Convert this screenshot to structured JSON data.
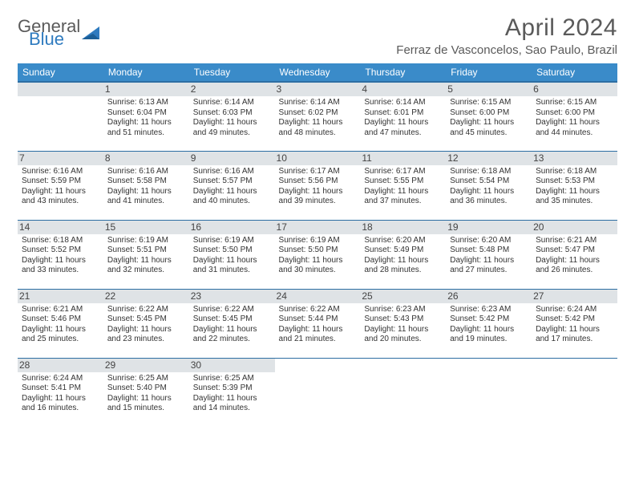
{
  "logo": {
    "word1": "General",
    "word2": "Blue"
  },
  "title": "April 2024",
  "subtitle": "Ferraz de Vasconcelos, Sao Paulo, Brazil",
  "colors": {
    "header_bg": "#3a8bc9",
    "header_text": "#ffffff",
    "rule": "#2d6ea3",
    "daybar": "#dfe3e6",
    "text": "#333333",
    "logo_gray": "#5a5a5a",
    "logo_blue": "#2f7bbf"
  },
  "daynames": [
    "Sunday",
    "Monday",
    "Tuesday",
    "Wednesday",
    "Thursday",
    "Friday",
    "Saturday"
  ],
  "weeks": [
    [
      null,
      {
        "n": "1",
        "sr": "6:13 AM",
        "ss": "6:04 PM",
        "dl": "11 hours and 51 minutes."
      },
      {
        "n": "2",
        "sr": "6:14 AM",
        "ss": "6:03 PM",
        "dl": "11 hours and 49 minutes."
      },
      {
        "n": "3",
        "sr": "6:14 AM",
        "ss": "6:02 PM",
        "dl": "11 hours and 48 minutes."
      },
      {
        "n": "4",
        "sr": "6:14 AM",
        "ss": "6:01 PM",
        "dl": "11 hours and 47 minutes."
      },
      {
        "n": "5",
        "sr": "6:15 AM",
        "ss": "6:00 PM",
        "dl": "11 hours and 45 minutes."
      },
      {
        "n": "6",
        "sr": "6:15 AM",
        "ss": "6:00 PM",
        "dl": "11 hours and 44 minutes."
      }
    ],
    [
      {
        "n": "7",
        "sr": "6:16 AM",
        "ss": "5:59 PM",
        "dl": "11 hours and 43 minutes."
      },
      {
        "n": "8",
        "sr": "6:16 AM",
        "ss": "5:58 PM",
        "dl": "11 hours and 41 minutes."
      },
      {
        "n": "9",
        "sr": "6:16 AM",
        "ss": "5:57 PM",
        "dl": "11 hours and 40 minutes."
      },
      {
        "n": "10",
        "sr": "6:17 AM",
        "ss": "5:56 PM",
        "dl": "11 hours and 39 minutes."
      },
      {
        "n": "11",
        "sr": "6:17 AM",
        "ss": "5:55 PM",
        "dl": "11 hours and 37 minutes."
      },
      {
        "n": "12",
        "sr": "6:18 AM",
        "ss": "5:54 PM",
        "dl": "11 hours and 36 minutes."
      },
      {
        "n": "13",
        "sr": "6:18 AM",
        "ss": "5:53 PM",
        "dl": "11 hours and 35 minutes."
      }
    ],
    [
      {
        "n": "14",
        "sr": "6:18 AM",
        "ss": "5:52 PM",
        "dl": "11 hours and 33 minutes."
      },
      {
        "n": "15",
        "sr": "6:19 AM",
        "ss": "5:51 PM",
        "dl": "11 hours and 32 minutes."
      },
      {
        "n": "16",
        "sr": "6:19 AM",
        "ss": "5:50 PM",
        "dl": "11 hours and 31 minutes."
      },
      {
        "n": "17",
        "sr": "6:19 AM",
        "ss": "5:50 PM",
        "dl": "11 hours and 30 minutes."
      },
      {
        "n": "18",
        "sr": "6:20 AM",
        "ss": "5:49 PM",
        "dl": "11 hours and 28 minutes."
      },
      {
        "n": "19",
        "sr": "6:20 AM",
        "ss": "5:48 PM",
        "dl": "11 hours and 27 minutes."
      },
      {
        "n": "20",
        "sr": "6:21 AM",
        "ss": "5:47 PM",
        "dl": "11 hours and 26 minutes."
      }
    ],
    [
      {
        "n": "21",
        "sr": "6:21 AM",
        "ss": "5:46 PM",
        "dl": "11 hours and 25 minutes."
      },
      {
        "n": "22",
        "sr": "6:22 AM",
        "ss": "5:45 PM",
        "dl": "11 hours and 23 minutes."
      },
      {
        "n": "23",
        "sr": "6:22 AM",
        "ss": "5:45 PM",
        "dl": "11 hours and 22 minutes."
      },
      {
        "n": "24",
        "sr": "6:22 AM",
        "ss": "5:44 PM",
        "dl": "11 hours and 21 minutes."
      },
      {
        "n": "25",
        "sr": "6:23 AM",
        "ss": "5:43 PM",
        "dl": "11 hours and 20 minutes."
      },
      {
        "n": "26",
        "sr": "6:23 AM",
        "ss": "5:42 PM",
        "dl": "11 hours and 19 minutes."
      },
      {
        "n": "27",
        "sr": "6:24 AM",
        "ss": "5:42 PM",
        "dl": "11 hours and 17 minutes."
      }
    ],
    [
      {
        "n": "28",
        "sr": "6:24 AM",
        "ss": "5:41 PM",
        "dl": "11 hours and 16 minutes."
      },
      {
        "n": "29",
        "sr": "6:25 AM",
        "ss": "5:40 PM",
        "dl": "11 hours and 15 minutes."
      },
      {
        "n": "30",
        "sr": "6:25 AM",
        "ss": "5:39 PM",
        "dl": "11 hours and 14 minutes."
      },
      null,
      null,
      null,
      null
    ]
  ],
  "labels": {
    "sunrise": "Sunrise:",
    "sunset": "Sunset:",
    "daylight": "Daylight:"
  }
}
